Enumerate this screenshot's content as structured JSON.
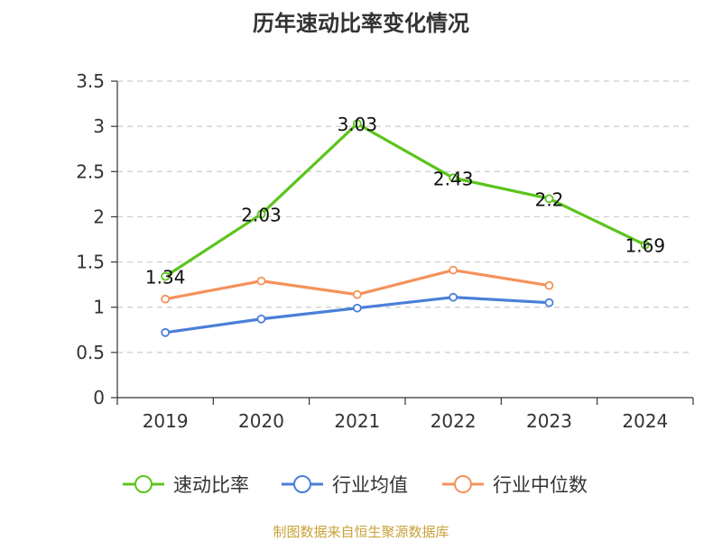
{
  "chart_data": {
    "type": "line",
    "title": "历年速动比率变化情况",
    "categories": [
      "2019",
      "2020",
      "2021",
      "2022",
      "2023",
      "2024"
    ],
    "ylim": [
      0,
      3.5
    ],
    "yticks": [
      "0",
      "0.5",
      "1",
      "1.5",
      "2",
      "2.5",
      "3",
      "3.5"
    ],
    "grid": true,
    "legend_position": "bottom",
    "series": [
      {
        "name": "速动比率",
        "color": "#5cc41d",
        "values": [
          1.34,
          2.03,
          3.03,
          2.43,
          2.2,
          1.69
        ],
        "labels": [
          "1.34",
          "2.03",
          "3.03",
          "2.43",
          "2.2",
          "1.69"
        ]
      },
      {
        "name": "行业均值",
        "color": "#4a7fd8",
        "values": [
          0.72,
          0.87,
          0.99,
          1.11,
          1.05,
          null
        ]
      },
      {
        "name": "行业中位数",
        "color": "#f4925b",
        "values": [
          1.09,
          1.29,
          1.14,
          1.41,
          1.24,
          null
        ]
      }
    ]
  },
  "source": "制图数据来自恒生聚源数据库"
}
